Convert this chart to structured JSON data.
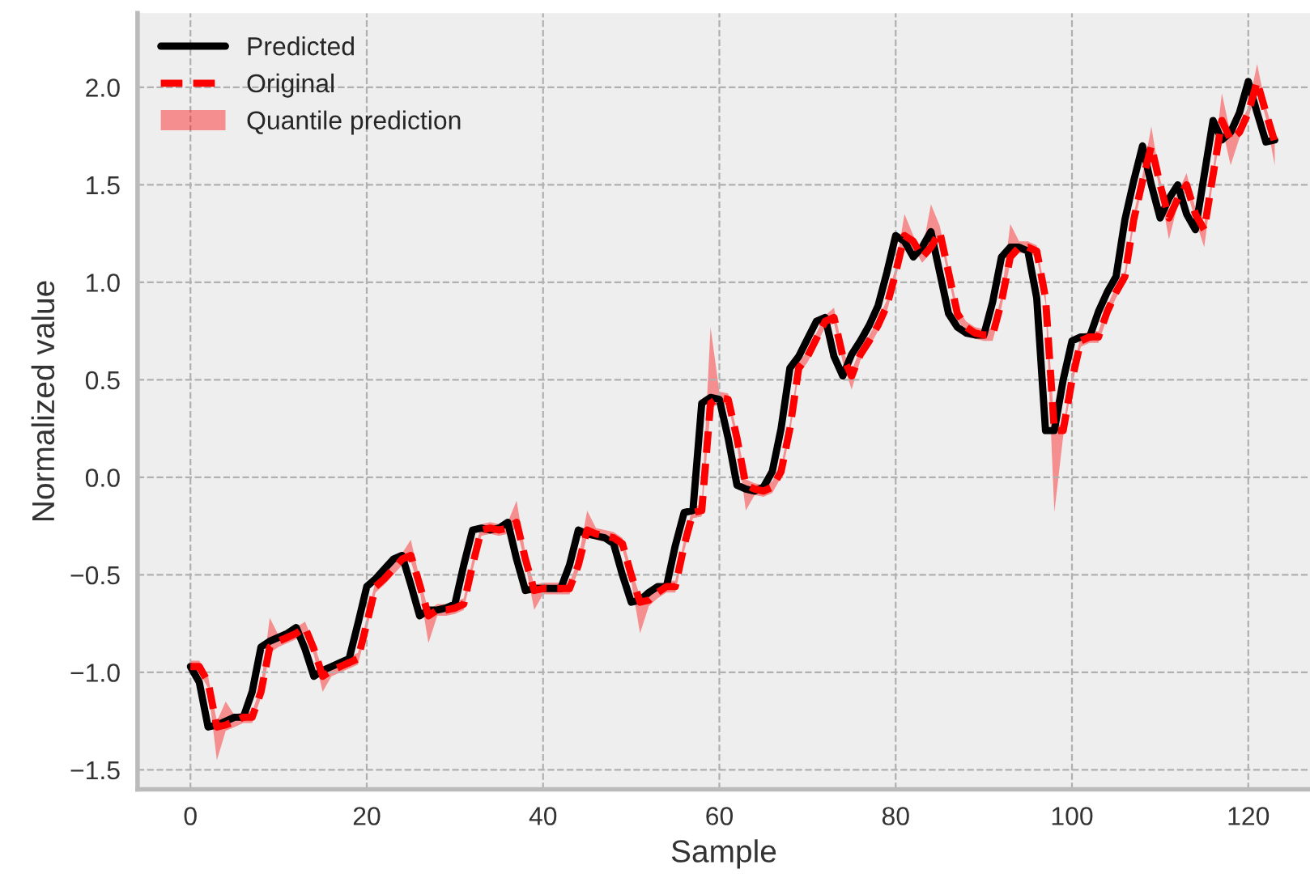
{
  "chart_data": {
    "type": "line",
    "xlabel": "Sample",
    "ylabel": "Normalized value",
    "x": [
      0,
      1,
      2,
      3,
      4,
      5,
      6,
      7,
      8,
      9,
      10,
      11,
      12,
      13,
      14,
      15,
      16,
      17,
      18,
      19,
      20,
      21,
      22,
      23,
      24,
      25,
      26,
      27,
      28,
      29,
      30,
      31,
      32,
      33,
      34,
      35,
      36,
      37,
      38,
      39,
      40,
      41,
      42,
      43,
      44,
      45,
      46,
      47,
      48,
      49,
      50,
      51,
      52,
      53,
      54,
      55,
      56,
      57,
      58,
      59,
      60,
      61,
      62,
      63,
      64,
      65,
      66,
      67,
      68,
      69,
      70,
      71,
      72,
      73,
      74,
      75,
      76,
      77,
      78,
      79,
      80,
      81,
      82,
      83,
      84,
      85,
      86,
      87,
      88,
      89,
      90,
      91,
      92,
      93,
      94,
      95,
      96,
      97,
      98,
      99,
      100,
      101,
      102,
      103,
      104,
      105,
      106,
      107,
      108,
      109,
      110,
      111,
      112,
      113,
      114,
      115,
      116,
      117,
      118,
      119,
      120,
      121,
      122,
      123
    ],
    "series": [
      {
        "name": "Predicted",
        "color": "#000000",
        "line_style": "solid",
        "values": [
          -0.97,
          -1.05,
          -1.28,
          -1.27,
          -1.25,
          -1.23,
          -1.23,
          -1.1,
          -0.87,
          -0.84,
          -0.82,
          -0.8,
          -0.77,
          -0.88,
          -1.02,
          -0.99,
          -0.97,
          -0.95,
          -0.93,
          -0.75,
          -0.56,
          -0.52,
          -0.47,
          -0.42,
          -0.4,
          -0.55,
          -0.71,
          -0.68,
          -0.68,
          -0.67,
          -0.65,
          -0.45,
          -0.27,
          -0.26,
          -0.27,
          -0.26,
          -0.23,
          -0.42,
          -0.58,
          -0.57,
          -0.57,
          -0.57,
          -0.57,
          -0.45,
          -0.27,
          -0.29,
          -0.3,
          -0.31,
          -0.34,
          -0.5,
          -0.64,
          -0.63,
          -0.59,
          -0.56,
          -0.56,
          -0.35,
          -0.18,
          -0.17,
          0.38,
          0.41,
          0.4,
          0.2,
          -0.04,
          -0.06,
          -0.07,
          -0.05,
          0.03,
          0.25,
          0.56,
          0.62,
          0.71,
          0.8,
          0.82,
          0.62,
          0.52,
          0.63,
          0.7,
          0.78,
          0.88,
          1.05,
          1.24,
          1.21,
          1.13,
          1.18,
          1.26,
          1.05,
          0.84,
          0.77,
          0.74,
          0.73,
          0.73,
          0.9,
          1.13,
          1.18,
          1.18,
          1.16,
          0.92,
          0.24,
          0.24,
          0.5,
          0.7,
          0.72,
          0.72,
          0.85,
          0.95,
          1.03,
          1.32,
          1.52,
          1.7,
          1.5,
          1.33,
          1.43,
          1.5,
          1.35,
          1.27,
          1.55,
          1.83,
          1.73,
          1.77,
          1.87,
          2.03,
          1.87,
          1.72,
          1.73
        ]
      },
      {
        "name": "Original",
        "color": "#ff0000",
        "line_style": "dashed",
        "values": [
          -0.97,
          -0.97,
          -1.05,
          -1.28,
          -1.27,
          -1.25,
          -1.23,
          -1.23,
          -1.1,
          -0.87,
          -0.84,
          -0.82,
          -0.8,
          -0.77,
          -0.88,
          -1.02,
          -0.99,
          -0.97,
          -0.95,
          -0.93,
          -0.75,
          -0.56,
          -0.52,
          -0.47,
          -0.42,
          -0.4,
          -0.55,
          -0.71,
          -0.68,
          -0.68,
          -0.67,
          -0.65,
          -0.45,
          -0.27,
          -0.26,
          -0.27,
          -0.26,
          -0.23,
          -0.42,
          -0.58,
          -0.57,
          -0.57,
          -0.57,
          -0.57,
          -0.45,
          -0.27,
          -0.29,
          -0.3,
          -0.31,
          -0.34,
          -0.5,
          -0.64,
          -0.63,
          -0.59,
          -0.56,
          -0.56,
          -0.35,
          -0.18,
          -0.17,
          0.38,
          0.41,
          0.4,
          0.2,
          -0.04,
          -0.06,
          -0.07,
          -0.05,
          0.03,
          0.25,
          0.56,
          0.62,
          0.71,
          0.8,
          0.82,
          0.62,
          0.52,
          0.63,
          0.7,
          0.78,
          0.88,
          1.05,
          1.24,
          1.21,
          1.13,
          1.18,
          1.26,
          1.05,
          0.84,
          0.77,
          0.74,
          0.73,
          0.73,
          0.9,
          1.13,
          1.18,
          1.18,
          1.16,
          0.92,
          0.24,
          0.24,
          0.5,
          0.7,
          0.72,
          0.72,
          0.85,
          0.95,
          1.03,
          1.32,
          1.52,
          1.7,
          1.5,
          1.33,
          1.43,
          1.5,
          1.35,
          1.27,
          1.55,
          1.83,
          1.73,
          1.77,
          1.87,
          2.03,
          1.87,
          1.72
        ],
        "lower": [
          -1.0,
          -1.0,
          -1.08,
          -1.45,
          -1.3,
          -1.28,
          -1.26,
          -1.26,
          -1.13,
          -0.9,
          -0.87,
          -0.85,
          -0.83,
          -0.8,
          -0.91,
          -1.1,
          -1.02,
          -1.0,
          -0.98,
          -0.96,
          -0.78,
          -0.59,
          -0.55,
          -0.5,
          -0.45,
          -0.43,
          -0.58,
          -0.85,
          -0.71,
          -0.71,
          -0.7,
          -0.68,
          -0.48,
          -0.3,
          -0.29,
          -0.3,
          -0.29,
          -0.26,
          -0.45,
          -0.68,
          -0.6,
          -0.6,
          -0.6,
          -0.6,
          -0.48,
          -0.3,
          -0.32,
          -0.33,
          -0.34,
          -0.37,
          -0.53,
          -0.8,
          -0.66,
          -0.62,
          -0.59,
          -0.59,
          -0.38,
          -0.21,
          -0.2,
          0.35,
          0.38,
          0.37,
          0.17,
          -0.17,
          -0.09,
          -0.1,
          -0.08,
          0.0,
          0.22,
          0.53,
          0.59,
          0.68,
          0.77,
          0.79,
          0.59,
          0.45,
          0.6,
          0.67,
          0.75,
          0.85,
          1.02,
          1.21,
          1.18,
          1.1,
          1.15,
          1.23,
          1.02,
          0.81,
          0.74,
          0.71,
          0.7,
          0.7,
          0.87,
          1.1,
          1.15,
          1.15,
          1.13,
          0.89,
          -0.18,
          0.21,
          0.47,
          0.67,
          0.69,
          0.69,
          0.82,
          0.92,
          1.0,
          1.29,
          1.49,
          1.67,
          1.47,
          1.22,
          1.4,
          1.47,
          1.32,
          1.18,
          1.52,
          1.8,
          1.6,
          1.74,
          1.84,
          2.0,
          1.84,
          1.6
        ],
        "upper": [
          -0.94,
          -0.94,
          -1.02,
          -1.25,
          -1.15,
          -1.22,
          -1.2,
          -1.2,
          -1.07,
          -0.72,
          -0.81,
          -0.79,
          -0.77,
          -0.74,
          -0.85,
          -0.99,
          -0.96,
          -0.94,
          -0.92,
          -0.9,
          -0.72,
          -0.53,
          -0.49,
          -0.44,
          -0.39,
          -0.32,
          -0.52,
          -0.68,
          -0.65,
          -0.65,
          -0.64,
          -0.62,
          -0.42,
          -0.24,
          -0.23,
          -0.24,
          -0.23,
          -0.12,
          -0.39,
          -0.55,
          -0.54,
          -0.54,
          -0.54,
          -0.54,
          -0.42,
          -0.17,
          -0.26,
          -0.27,
          -0.28,
          -0.31,
          -0.47,
          -0.61,
          -0.6,
          -0.56,
          -0.53,
          -0.53,
          -0.32,
          -0.15,
          -0.14,
          0.77,
          0.44,
          0.43,
          0.23,
          -0.01,
          -0.03,
          -0.04,
          -0.02,
          0.06,
          0.28,
          0.59,
          0.65,
          0.74,
          0.83,
          0.87,
          0.65,
          0.55,
          0.66,
          0.73,
          0.81,
          0.91,
          1.08,
          1.35,
          1.24,
          1.16,
          1.4,
          1.29,
          1.08,
          0.87,
          0.8,
          0.77,
          0.76,
          0.76,
          0.93,
          1.3,
          1.21,
          1.21,
          1.19,
          0.95,
          0.27,
          0.27,
          0.53,
          0.73,
          0.75,
          0.75,
          0.88,
          0.98,
          1.06,
          1.35,
          1.55,
          1.8,
          1.53,
          1.36,
          1.46,
          1.56,
          1.38,
          1.3,
          1.58,
          1.97,
          1.76,
          1.8,
          1.9,
          2.12,
          1.9,
          1.75
        ]
      }
    ],
    "xlim": [
      -6,
      127
    ],
    "ylim": [
      -1.6,
      2.38
    ],
    "xticks": [
      0,
      20,
      40,
      60,
      80,
      100,
      120
    ],
    "yticks": [
      {
        "value": -1.5,
        "label": "−1.5"
      },
      {
        "value": -1.0,
        "label": "−1.0"
      },
      {
        "value": -0.5,
        "label": "−0.5"
      },
      {
        "value": 0.0,
        "label": "0.0"
      },
      {
        "value": 0.5,
        "label": "0.5"
      },
      {
        "value": 1.0,
        "label": "1.0"
      },
      {
        "value": 1.5,
        "label": "1.5"
      },
      {
        "value": 2.0,
        "label": "2.0"
      }
    ],
    "annotations": [
      "Quantile prediction"
    ],
    "grid": true,
    "legend": "top left"
  }
}
